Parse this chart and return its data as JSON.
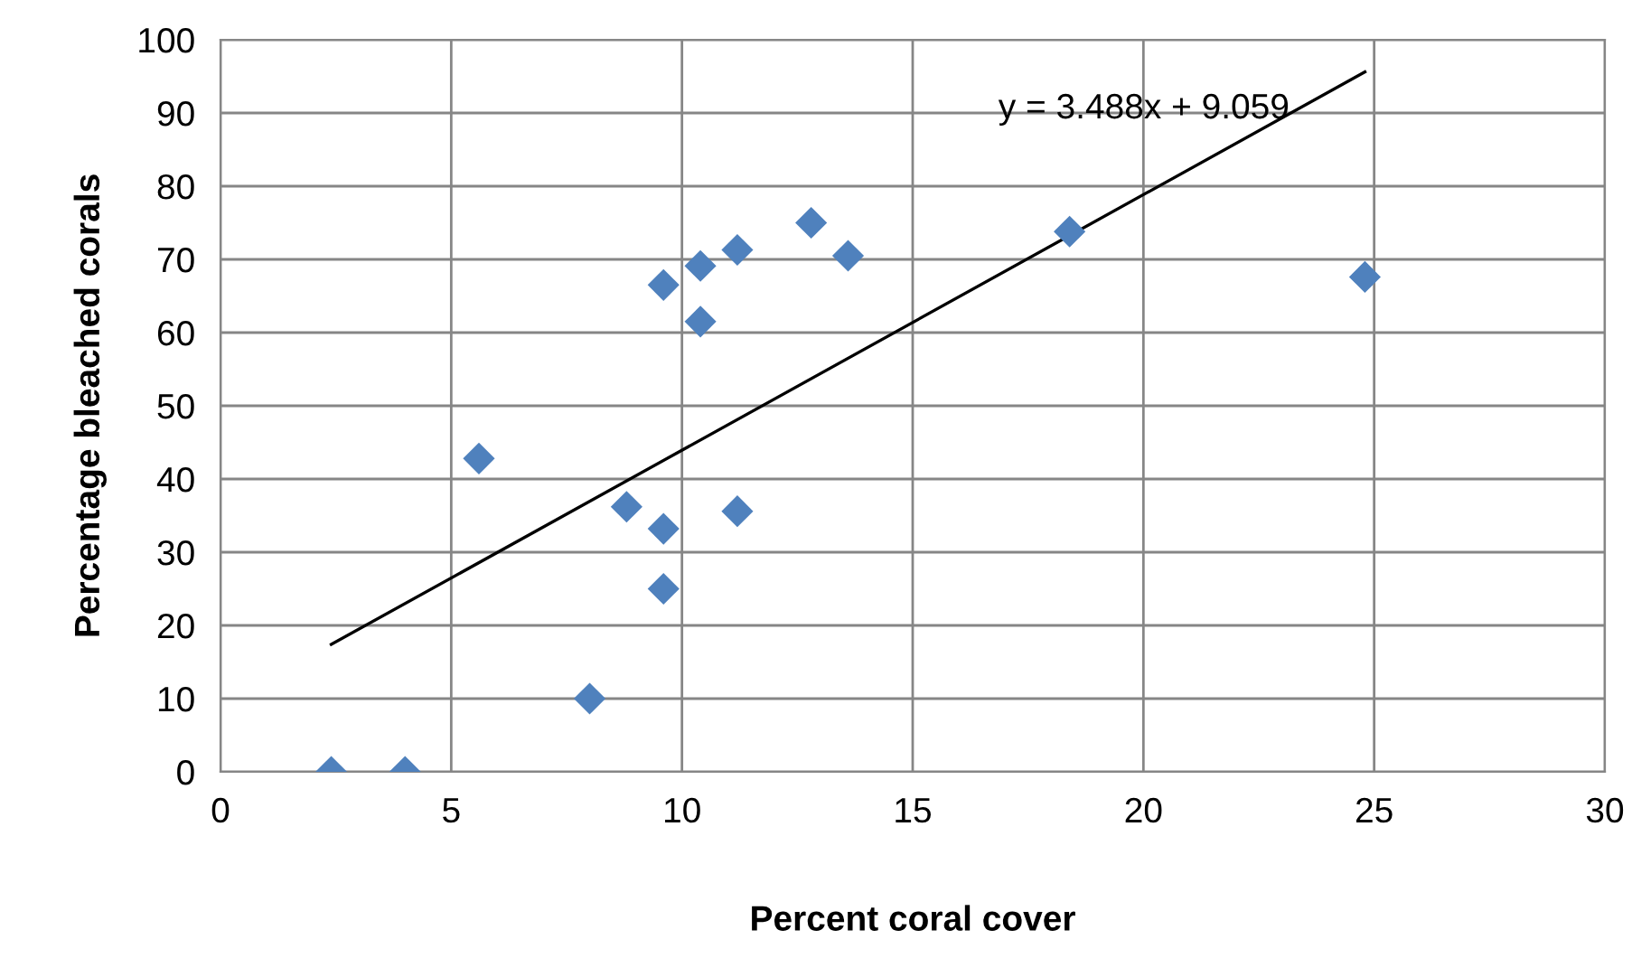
{
  "chart_data": {
    "type": "scatter",
    "xlabel": "Percent coral cover",
    "ylabel": "Percentage bleached corals",
    "series": [
      {
        "color": "#4f81bd",
        "marker": "diamond",
        "x": [
          2.4,
          4.0,
          5.6,
          8.0,
          8.8,
          9.6,
          9.6,
          9.6,
          10.4,
          10.4,
          11.2,
          11.2,
          12.8,
          13.6,
          18.4,
          24.8
        ],
        "values": [
          0,
          0,
          42.8,
          10,
          36.2,
          33.2,
          25,
          66.5,
          69.1,
          61.5,
          71.3,
          35.6,
          75,
          70.5,
          73.8,
          67.6
        ]
      },
      {
        "type": "line",
        "color": "#000000",
        "marker": "none",
        "x": [
          2.4,
          24.8
        ],
        "values": [
          17.4,
          95.6
        ]
      }
    ],
    "annotations": [
      "y = 3.488x + 9.059"
    ],
    "xlim": [
      0,
      30
    ],
    "xticks": [
      0,
      5,
      10,
      15,
      20,
      25,
      30
    ],
    "ylim": [
      0,
      100
    ],
    "yticks": [
      0,
      10,
      20,
      30,
      40,
      50,
      60,
      70,
      80,
      90,
      100
    ],
    "grid": true
  }
}
